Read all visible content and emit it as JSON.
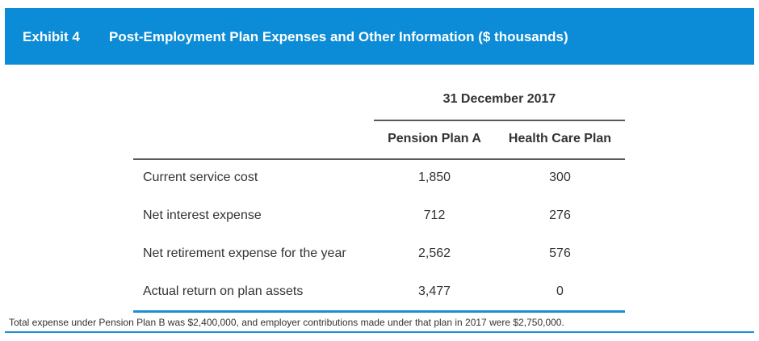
{
  "exhibit": {
    "number": "Exhibit 4",
    "title": "Post-Employment Plan Expenses and Other Information ($ thousands)"
  },
  "table": {
    "date_header": "31 December 2017",
    "columns": [
      "Pension Plan A",
      "Health Care Plan"
    ],
    "rows": [
      {
        "label": "Current service cost",
        "values": [
          "1,850",
          "300"
        ]
      },
      {
        "label": "Net interest expense",
        "values": [
          "712",
          "276"
        ]
      },
      {
        "label": "Net retirement expense for the year",
        "values": [
          "2,562",
          "576"
        ]
      },
      {
        "label": "Actual return on plan assets",
        "values": [
          "3,477",
          "0"
        ]
      }
    ]
  },
  "footnote": "Total expense under Pension Plan B was $2,400,000, and employer contributions made under that plan in 2017 were $2,750,000.",
  "colors": {
    "banner": "#0c8bd6",
    "rule_accent": "#1e8fd1"
  }
}
